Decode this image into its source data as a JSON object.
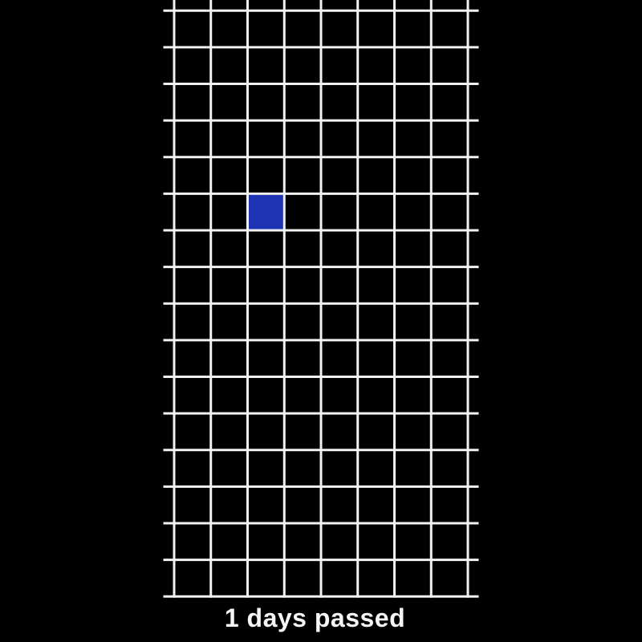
{
  "scene": {
    "background_color": "#000000"
  },
  "grid": {
    "columns": 8,
    "rows": 16,
    "line_color": "#f2f2f2",
    "occupied_cell": {
      "column": 2,
      "row": 5,
      "color": "#1e32b4"
    }
  },
  "status": {
    "label": "1 days passed",
    "color": "#f5f5f5"
  }
}
